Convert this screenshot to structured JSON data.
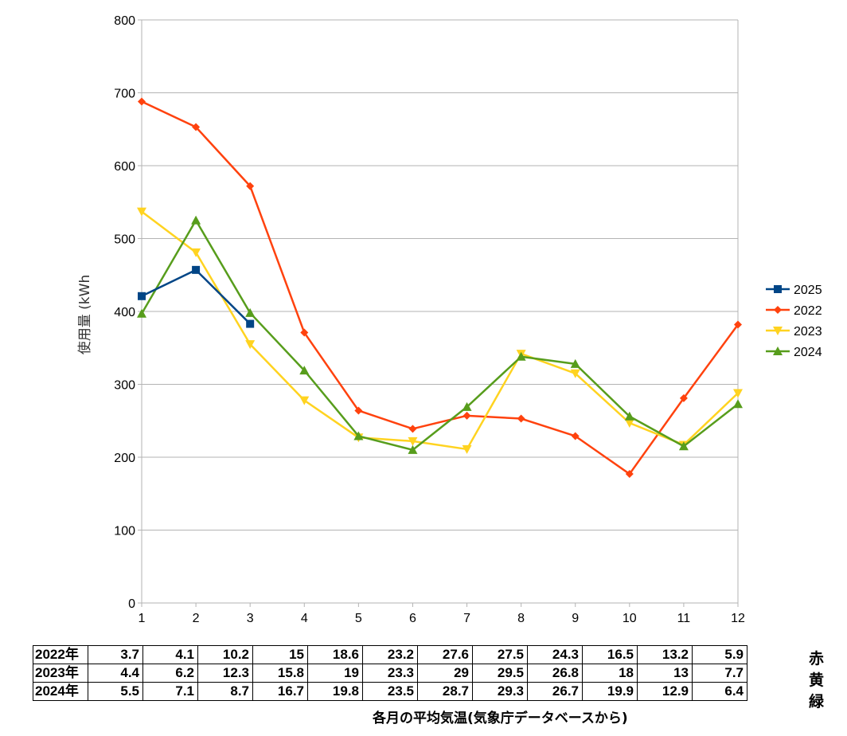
{
  "chart_data": {
    "type": "line",
    "x": [
      1,
      2,
      3,
      4,
      5,
      6,
      7,
      8,
      9,
      10,
      11,
      12
    ],
    "ylabel": "使用量 (kWh",
    "ylim": [
      0,
      800
    ],
    "yticks": [
      0,
      100,
      200,
      300,
      400,
      500,
      600,
      700,
      800
    ],
    "grid": true,
    "legend": "right",
    "series": [
      {
        "name": "2025",
        "color": "#004586",
        "marker": "square",
        "values": [
          421,
          457,
          383,
          null,
          null,
          null,
          null,
          null,
          null,
          null,
          null,
          null
        ]
      },
      {
        "name": "2022",
        "color": "#ff420e",
        "marker": "diamond",
        "values": [
          688,
          653,
          572,
          371,
          264,
          239,
          257,
          253,
          229,
          177,
          281,
          382
        ]
      },
      {
        "name": "2023",
        "color": "#ffd320",
        "marker": "triangle-down",
        "values": [
          537,
          481,
          355,
          278,
          227,
          222,
          211,
          342,
          315,
          247,
          217,
          288
        ]
      },
      {
        "name": "2024",
        "color": "#579d1c",
        "marker": "triangle-up",
        "values": [
          397,
          525,
          398,
          319,
          229,
          210,
          269,
          338,
          328,
          256,
          215,
          273
        ]
      }
    ]
  },
  "temperature_table": {
    "caption": "各月の平均気温(気象庁データベースから)",
    "rows": [
      {
        "label": "2022年",
        "values": [
          "3.7",
          "4.1",
          "10.2",
          "15",
          "18.6",
          "23.2",
          "27.6",
          "27.5",
          "24.3",
          "16.5",
          "13.2",
          "5.9"
        ],
        "side": "赤"
      },
      {
        "label": "2023年",
        "values": [
          "4.4",
          "6.2",
          "12.3",
          "15.8",
          "19",
          "23.3",
          "29",
          "29.5",
          "26.8",
          "18",
          "13",
          "7.7"
        ],
        "side": "黄"
      },
      {
        "label": "2024年",
        "values": [
          "5.5",
          "7.1",
          "8.7",
          "16.7",
          "19.8",
          "23.5",
          "28.7",
          "29.3",
          "26.7",
          "19.9",
          "12.9",
          "6.4"
        ],
        "side": "緑"
      }
    ]
  }
}
